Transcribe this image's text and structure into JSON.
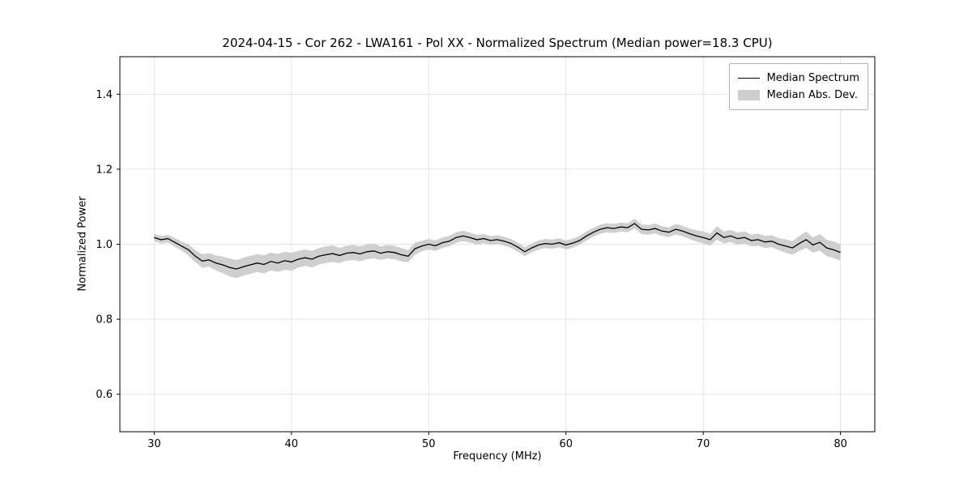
{
  "chart_data": {
    "type": "line",
    "title": "2024-04-15 - Cor 262 - LWA161 - Pol XX - Normalized Spectrum (Median power=18.3 CPU)",
    "xlabel": "Frequency (MHz)",
    "ylabel": "Normalized Power",
    "xlim": [
      27.5,
      82.5
    ],
    "ylim": [
      0.5,
      1.5
    ],
    "xticks": [
      30,
      40,
      50,
      60,
      70,
      80
    ],
    "yticks": [
      0.6,
      0.8,
      1.0,
      1.2,
      1.4
    ],
    "grid": true,
    "line_color": "#000000",
    "band_color": "#cfcfcf",
    "grid_color": "#dedede",
    "legend_entries": [
      {
        "label": "Median Spectrum",
        "swatch": "line"
      },
      {
        "label": "Median Abs. Dev.",
        "swatch": "patch"
      }
    ],
    "x": [
      30,
      30.5,
      31,
      31.5,
      32,
      32.5,
      33,
      33.5,
      34,
      34.5,
      35,
      35.5,
      36,
      36.5,
      37,
      37.5,
      38,
      38.5,
      39,
      39.5,
      40,
      40.5,
      41,
      41.5,
      42,
      42.5,
      43,
      43.5,
      44,
      44.5,
      45,
      45.5,
      46,
      46.5,
      47,
      47.5,
      48,
      48.5,
      49,
      49.5,
      50,
      50.5,
      51,
      51.5,
      52,
      52.5,
      53,
      53.5,
      54,
      54.5,
      55,
      55.5,
      56,
      56.5,
      57,
      57.5,
      58,
      58.5,
      59,
      59.5,
      60,
      60.5,
      61,
      61.5,
      62,
      62.5,
      63,
      63.5,
      64,
      64.5,
      65,
      65.5,
      66,
      66.5,
      67,
      67.5,
      68,
      68.5,
      69,
      69.5,
      70,
      70.5,
      71,
      71.5,
      72,
      72.5,
      73,
      73.5,
      74,
      74.5,
      75,
      75.5,
      76,
      76.5,
      77,
      77.5,
      78,
      78.5,
      79,
      79.5,
      80
    ],
    "median": [
      1.018,
      1.012,
      1.015,
      1.005,
      0.995,
      0.985,
      0.968,
      0.955,
      0.958,
      0.95,
      0.945,
      0.938,
      0.934,
      0.94,
      0.945,
      0.95,
      0.946,
      0.954,
      0.95,
      0.956,
      0.953,
      0.96,
      0.964,
      0.96,
      0.968,
      0.972,
      0.975,
      0.97,
      0.976,
      0.978,
      0.974,
      0.98,
      0.982,
      0.976,
      0.98,
      0.978,
      0.972,
      0.968,
      0.988,
      0.995,
      1.0,
      0.996,
      1.004,
      1.008,
      1.018,
      1.022,
      1.018,
      1.012,
      1.015,
      1.01,
      1.012,
      1.008,
      1.002,
      0.992,
      0.98,
      0.99,
      0.998,
      1.002,
      1.0,
      1.004,
      0.998,
      1.003,
      1.01,
      1.022,
      1.032,
      1.04,
      1.044,
      1.042,
      1.046,
      1.044,
      1.055,
      1.04,
      1.038,
      1.042,
      1.035,
      1.032,
      1.04,
      1.035,
      1.028,
      1.022,
      1.018,
      1.012,
      1.03,
      1.018,
      1.022,
      1.015,
      1.018,
      1.01,
      1.012,
      1.006,
      1.008,
      1.0,
      0.995,
      0.99,
      1.002,
      1.012,
      0.998,
      1.005,
      0.99,
      0.985,
      0.978
    ],
    "mad": [
      0.01,
      0.01,
      0.01,
      0.012,
      0.012,
      0.015,
      0.016,
      0.018,
      0.018,
      0.02,
      0.022,
      0.024,
      0.024,
      0.024,
      0.024,
      0.024,
      0.024,
      0.024,
      0.024,
      0.024,
      0.024,
      0.022,
      0.022,
      0.022,
      0.022,
      0.022,
      0.022,
      0.02,
      0.02,
      0.02,
      0.02,
      0.02,
      0.02,
      0.018,
      0.018,
      0.018,
      0.018,
      0.016,
      0.016,
      0.014,
      0.014,
      0.014,
      0.014,
      0.014,
      0.014,
      0.014,
      0.013,
      0.013,
      0.012,
      0.012,
      0.012,
      0.012,
      0.012,
      0.012,
      0.012,
      0.012,
      0.012,
      0.012,
      0.012,
      0.012,
      0.012,
      0.012,
      0.012,
      0.012,
      0.012,
      0.012,
      0.012,
      0.012,
      0.012,
      0.012,
      0.013,
      0.013,
      0.013,
      0.013,
      0.013,
      0.013,
      0.014,
      0.014,
      0.014,
      0.015,
      0.016,
      0.016,
      0.018,
      0.016,
      0.016,
      0.016,
      0.016,
      0.016,
      0.016,
      0.016,
      0.016,
      0.016,
      0.018,
      0.018,
      0.02,
      0.022,
      0.02,
      0.022,
      0.022,
      0.022,
      0.022
    ]
  }
}
